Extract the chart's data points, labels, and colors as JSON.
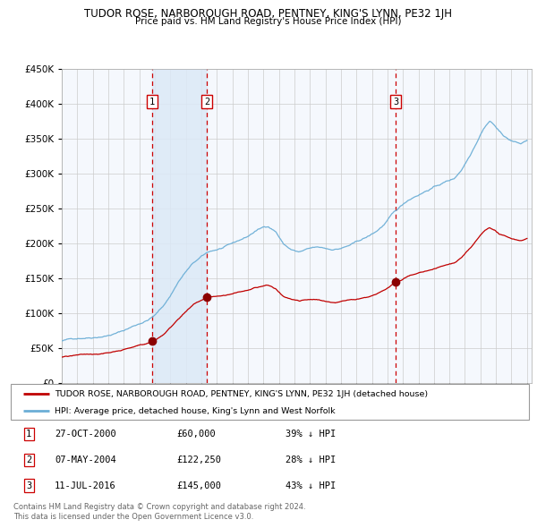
{
  "title": "TUDOR ROSE, NARBOROUGH ROAD, PENTNEY, KING'S LYNN, PE32 1JH",
  "subtitle": "Price paid vs. HM Land Registry's House Price Index (HPI)",
  "legend_house": "TUDOR ROSE, NARBOROUGH ROAD, PENTNEY, KING'S LYNN, PE32 1JH (detached house)",
  "legend_hpi": "HPI: Average price, detached house, King's Lynn and West Norfolk",
  "footer1": "Contains HM Land Registry data © Crown copyright and database right 2024.",
  "footer2": "This data is licensed under the Open Government Licence v3.0.",
  "transactions": [
    {
      "num": 1,
      "date": "27-OCT-2000",
      "price": "£60,000",
      "pct": "39% ↓ HPI",
      "year": 2000.82,
      "val": 60000
    },
    {
      "num": 2,
      "date": "07-MAY-2004",
      "price": "£122,250",
      "pct": "28% ↓ HPI",
      "year": 2004.35,
      "val": 122250
    },
    {
      "num": 3,
      "date": "11-JUL-2016",
      "price": "£145,000",
      "pct": "43% ↓ HPI",
      "year": 2016.53,
      "val": 145000
    }
  ],
  "ylim": [
    0,
    450000
  ],
  "yticks": [
    0,
    50000,
    100000,
    150000,
    200000,
    250000,
    300000,
    350000,
    400000,
    450000
  ],
  "hpi_color": "#6baed6",
  "house_color": "#c00000",
  "marker_color": "#8b0000",
  "vline_color": "#cc0000",
  "shade_color": "#dce9f7",
  "grid_color": "#cccccc",
  "bg_color": "#f5f8fd",
  "xstart": 1995,
  "xend": 2025
}
